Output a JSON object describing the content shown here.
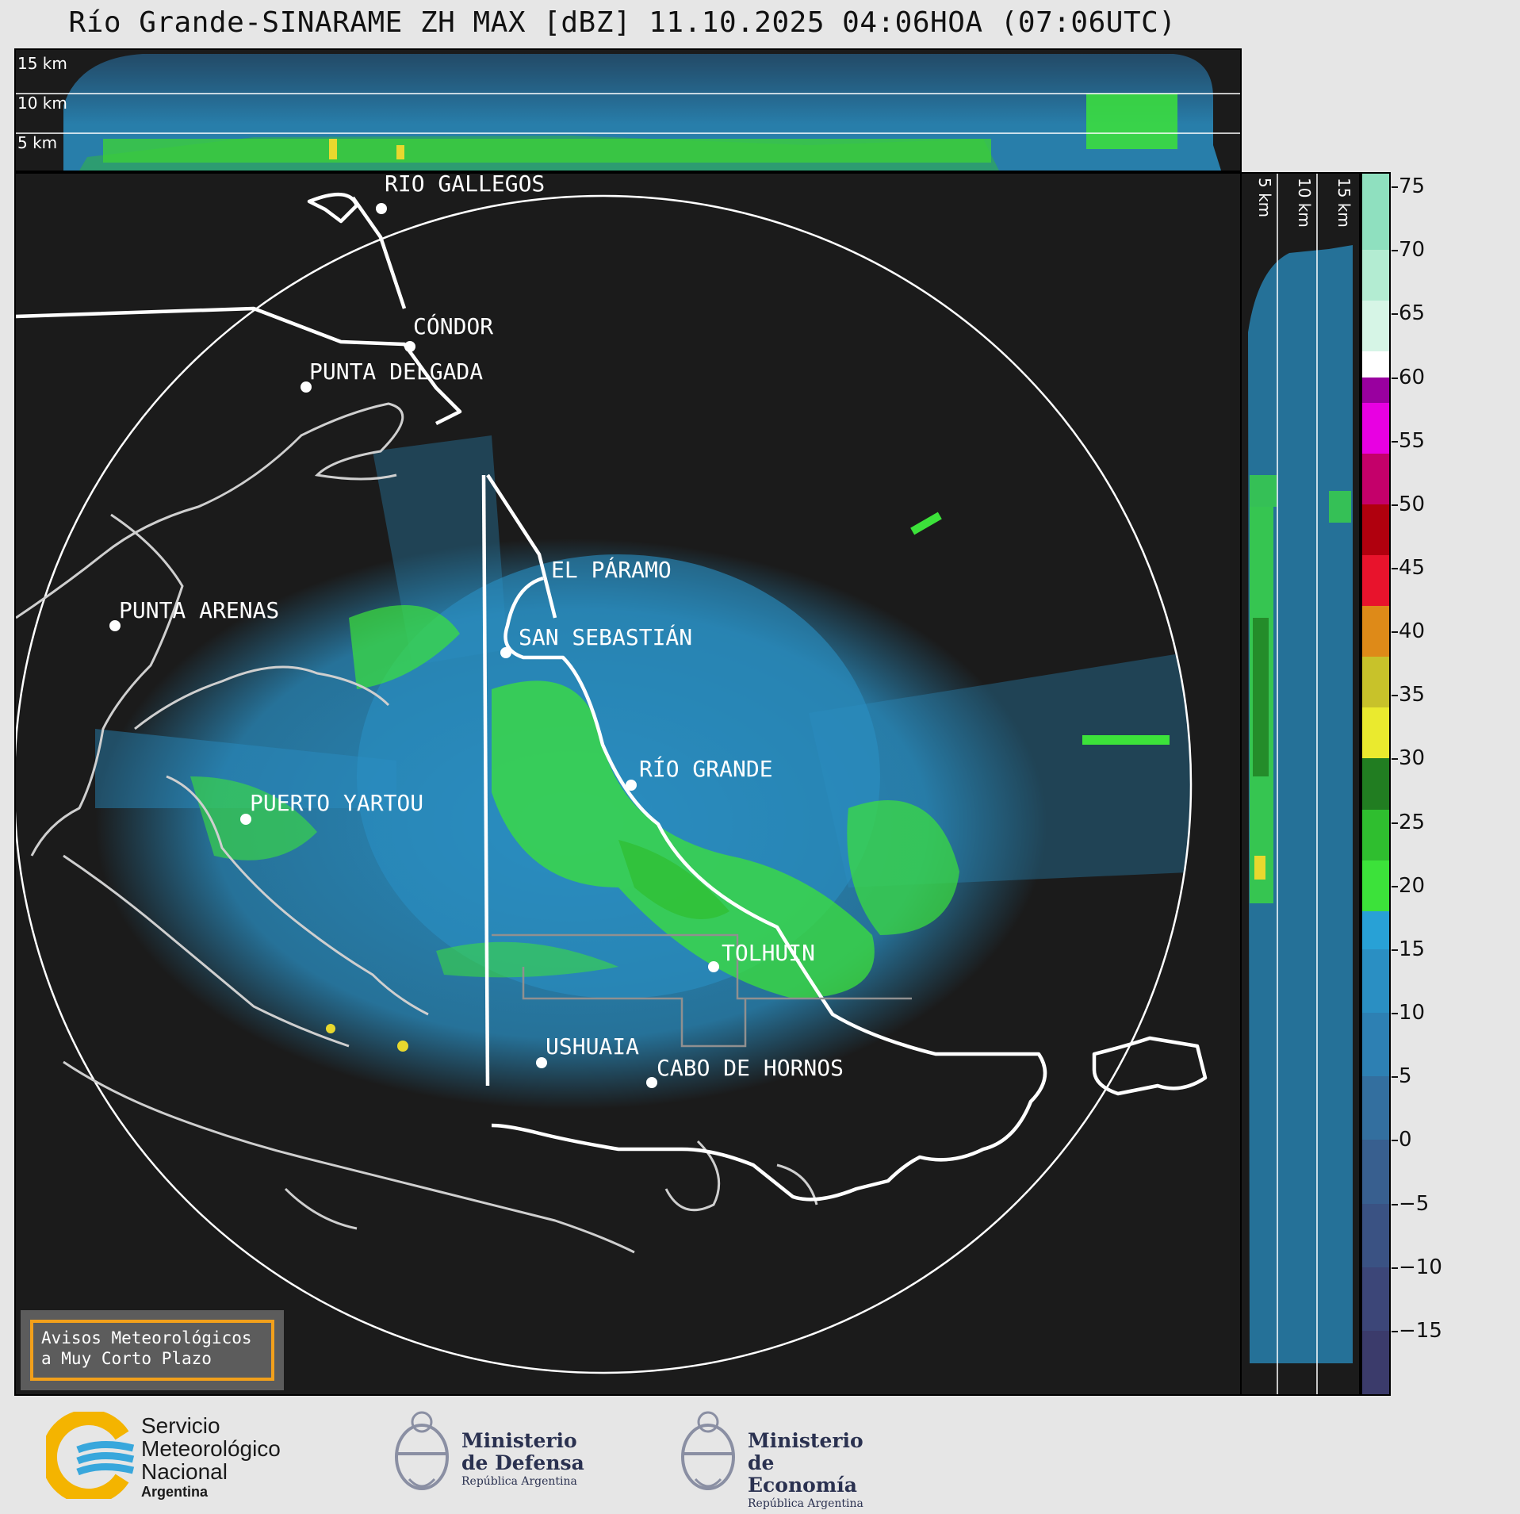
{
  "title": "Río Grande-SINARAME ZH MAX [dBZ] 11.10.2025 04:06HOA (07:06UTC)",
  "top_panel": {
    "height_labels": [
      "15 km",
      "10 km",
      "5 km"
    ]
  },
  "side_panel": {
    "height_labels": [
      "5 km",
      "10 km",
      "15 km"
    ]
  },
  "places": [
    {
      "name": "RÍO GALLEGOS",
      "id": "rio-gallegos"
    },
    {
      "name": "CÓNDOR",
      "id": "condor"
    },
    {
      "name": "PUNTA DELGADA",
      "id": "punta-delgada"
    },
    {
      "name": "EL PÁRAMO",
      "id": "el-paramo"
    },
    {
      "name": "SAN SEBASTIÁN",
      "id": "san-sebastian"
    },
    {
      "name": "PUNTA ARENAS",
      "id": "punta-arenas"
    },
    {
      "name": "RÍO GRANDE",
      "id": "rio-grande"
    },
    {
      "name": "PUERTO YARTOU",
      "id": "puerto-yartou"
    },
    {
      "name": "TOLHUIN",
      "id": "tolhuin"
    },
    {
      "name": "USHUAIA",
      "id": "ushuaia"
    },
    {
      "name": "CABO DE HORNOS",
      "id": "cabo-de-hornos"
    }
  ],
  "colorbar": {
    "ticks": [
      "75",
      "70",
      "65",
      "60",
      "55",
      "50",
      "45",
      "40",
      "35",
      "30",
      "25",
      "20",
      "15",
      "10",
      "5",
      "0",
      "−5",
      "−10",
      "−15"
    ],
    "min": -20,
    "max": 76,
    "bands": [
      {
        "from": -20,
        "to": -15,
        "color": "#3b3b6b"
      },
      {
        "from": -15,
        "to": -10,
        "color": "#3c4678"
      },
      {
        "from": -10,
        "to": -5,
        "color": "#3a5283"
      },
      {
        "from": -5,
        "to": 0,
        "color": "#385f8f"
      },
      {
        "from": 0,
        "to": 5,
        "color": "#336f9f"
      },
      {
        "from": 5,
        "to": 10,
        "color": "#2d80b3"
      },
      {
        "from": 10,
        "to": 15,
        "color": "#2a8fc3"
      },
      {
        "from": 15,
        "to": 18,
        "color": "#28a1d6"
      },
      {
        "from": 18,
        "to": 22,
        "color": "#3ce23a"
      },
      {
        "from": 22,
        "to": 26,
        "color": "#2fbe2f"
      },
      {
        "from": 26,
        "to": 30,
        "color": "#217d21"
      },
      {
        "from": 30,
        "to": 34,
        "color": "#eaea2e"
      },
      {
        "from": 34,
        "to": 38,
        "color": "#c8c22a"
      },
      {
        "from": 38,
        "to": 42,
        "color": "#de8a18"
      },
      {
        "from": 42,
        "to": 46,
        "color": "#e8132c"
      },
      {
        "from": 46,
        "to": 50,
        "color": "#b0000e"
      },
      {
        "from": 50,
        "to": 54,
        "color": "#c4006a"
      },
      {
        "from": 54,
        "to": 58,
        "color": "#e800e2"
      },
      {
        "from": 58,
        "to": 60,
        "color": "#99009f"
      },
      {
        "from": 60,
        "to": 62,
        "color": "#ffffff"
      },
      {
        "from": 62,
        "to": 66,
        "color": "#d6f5e6"
      },
      {
        "from": 66,
        "to": 70,
        "color": "#b3ecd2"
      },
      {
        "from": 70,
        "to": 76,
        "color": "#8fe0bf"
      }
    ]
  },
  "warning_box": {
    "line1": "Avisos Meteorológicos",
    "line2": "a Muy Corto Plazo"
  },
  "footer": {
    "smn": {
      "line1": "Servicio",
      "line2": "Meteorológico",
      "line3": "Nacional",
      "line4": "Argentina"
    },
    "defensa": {
      "line1": "Ministerio",
      "line2": "de Defensa",
      "line3": "República Argentina"
    },
    "economia": {
      "line1": "Ministerio",
      "line2": "de Economía",
      "line3": "República Argentina"
    }
  },
  "colors": {
    "background": "#1b1b1b",
    "echo_blue": "#2a8fc3",
    "echo_green": "#3ce23a",
    "outline": "#ffffff"
  }
}
